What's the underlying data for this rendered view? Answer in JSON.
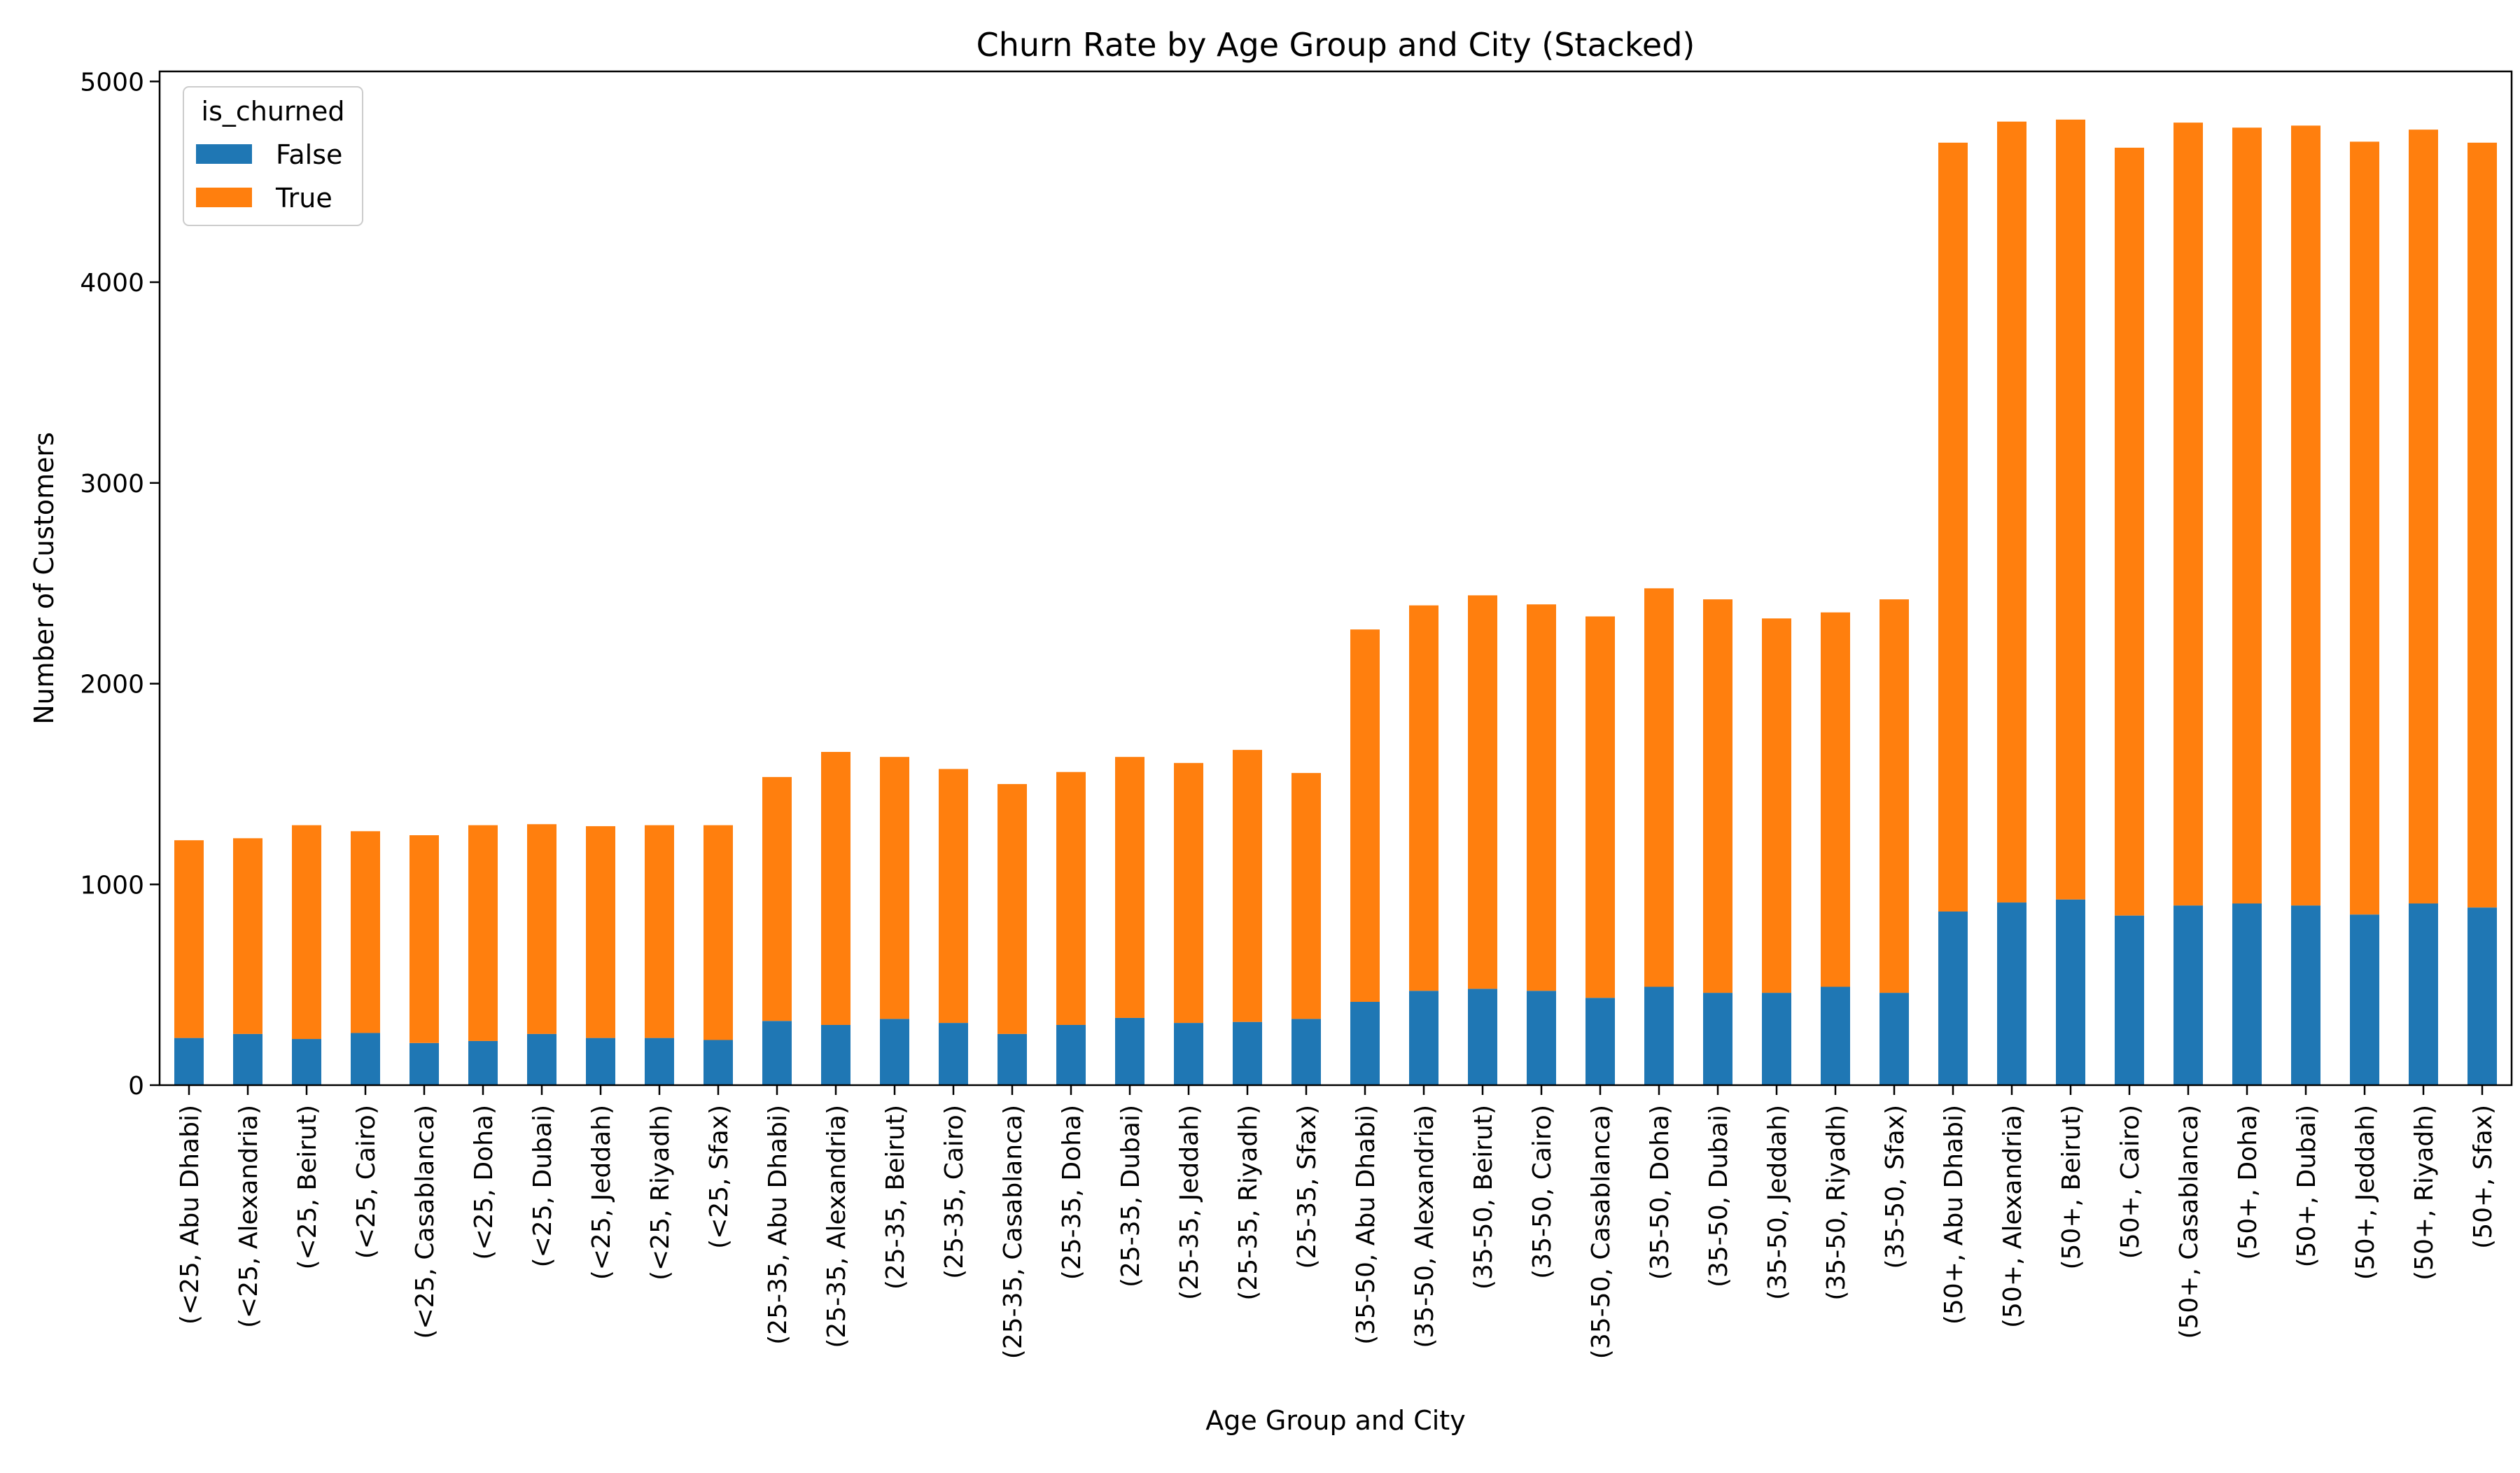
{
  "chart_data": {
    "type": "bar",
    "stacked": true,
    "title": "Churn Rate by Age Group and City (Stacked)",
    "xlabel": "Age Group and City",
    "ylabel": "Number of Customers",
    "ylim": [
      0,
      5050
    ],
    "yticks": [
      0,
      1000,
      2000,
      3000,
      4000,
      5000
    ],
    "grid": false,
    "legend": {
      "title": "is_churned",
      "placement": "top-left"
    },
    "categories": [
      "(<25, Abu Dhabi)",
      "(<25, Alexandria)",
      "(<25, Beirut)",
      "(<25, Cairo)",
      "(<25, Casablanca)",
      "(<25, Doha)",
      "(<25, Dubai)",
      "(<25, Jeddah)",
      "(<25, Riyadh)",
      "(<25, Sfax)",
      "(25-35, Abu Dhabi)",
      "(25-35, Alexandria)",
      "(25-35, Beirut)",
      "(25-35, Cairo)",
      "(25-35, Casablanca)",
      "(25-35, Doha)",
      "(25-35, Dubai)",
      "(25-35, Jeddah)",
      "(25-35, Riyadh)",
      "(25-35, Sfax)",
      "(35-50, Abu Dhabi)",
      "(35-50, Alexandria)",
      "(35-50, Beirut)",
      "(35-50, Cairo)",
      "(35-50, Casablanca)",
      "(35-50, Doha)",
      "(35-50, Dubai)",
      "(35-50, Jeddah)",
      "(35-50, Riyadh)",
      "(35-50, Sfax)",
      "(50+, Abu Dhabi)",
      "(50+, Alexandria)",
      "(50+, Beirut)",
      "(50+, Cairo)",
      "(50+, Casablanca)",
      "(50+, Doha)",
      "(50+, Dubai)",
      "(50+, Jeddah)",
      "(50+, Riyadh)",
      "(50+, Sfax)"
    ],
    "series": [
      {
        "name": "False",
        "color": "#1f77b4",
        "values": [
          235,
          255,
          230,
          260,
          210,
          220,
          255,
          235,
          235,
          225,
          320,
          300,
          330,
          310,
          255,
          300,
          335,
          310,
          315,
          330,
          415,
          470,
          480,
          470,
          435,
          490,
          460,
          460,
          490,
          460,
          865,
          910,
          925,
          845,
          895,
          905,
          895,
          850,
          905,
          885
        ]
      },
      {
        "name": "True",
        "color": "#ff7f0e",
        "values": [
          985,
          975,
          1065,
          1005,
          1035,
          1075,
          1045,
          1055,
          1060,
          1070,
          1215,
          1360,
          1305,
          1265,
          1245,
          1260,
          1300,
          1295,
          1355,
          1225,
          1855,
          1920,
          1960,
          1925,
          1900,
          1985,
          1960,
          1865,
          1865,
          1960,
          3830,
          3890,
          3885,
          3825,
          3900,
          3865,
          3885,
          3850,
          3855,
          3810
        ]
      }
    ]
  }
}
